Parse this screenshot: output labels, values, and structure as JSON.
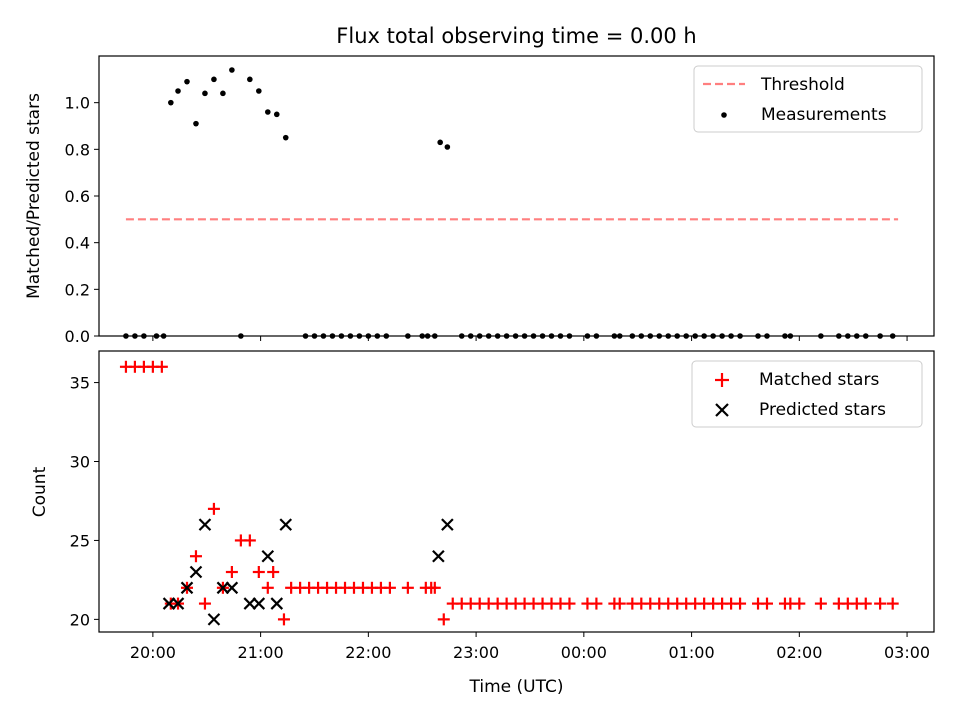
{
  "chart_data": {
    "title": "Flux total observing time = 0.00 h",
    "xlabel": "Time (UTC)",
    "x_unit": "UTC time (HH:MM); values after 24:00 are next day",
    "x_ticks": [
      "20:00",
      "21:00",
      "22:00",
      "23:00",
      "00:00",
      "01:00",
      "02:00",
      "03:00"
    ],
    "x_range": [
      "19:30",
      "03:15"
    ],
    "panels": [
      {
        "type": "scatter",
        "ylabel": "Matched/Predicted stars",
        "ylim": [
          0,
          1.2
        ],
        "yticks": [
          "0.0",
          "0.2",
          "0.4",
          "0.6",
          "0.8",
          "1.0"
        ],
        "legend_position": "top-right",
        "series": [
          {
            "name": "Threshold",
            "kind": "dashed-line",
            "color": "#ff7f7f",
            "x": [
              "19:45",
              "02:55"
            ],
            "y": [
              0.5,
              0.5
            ]
          },
          {
            "name": "Measurements",
            "kind": "points",
            "color": "#000000",
            "points": [
              [
                "19:45",
                0.0
              ],
              [
                "19:50",
                0.0
              ],
              [
                "19:55",
                0.0
              ],
              [
                "20:02",
                0.0
              ],
              [
                "20:06",
                0.0
              ],
              [
                "20:10",
                1.0
              ],
              [
                "20:14",
                1.05
              ],
              [
                "20:19",
                1.09
              ],
              [
                "20:24",
                0.91
              ],
              [
                "20:29",
                1.04
              ],
              [
                "20:34",
                1.1
              ],
              [
                "20:39",
                1.04
              ],
              [
                "20:44",
                1.14
              ],
              [
                "20:49",
                0.0
              ],
              [
                "20:54",
                1.1
              ],
              [
                "20:59",
                1.05
              ],
              [
                "21:04",
                0.96
              ],
              [
                "21:09",
                0.95
              ],
              [
                "21:14",
                0.85
              ],
              [
                "21:25",
                0.0
              ],
              [
                "21:30",
                0.0
              ],
              [
                "21:35",
                0.0
              ],
              [
                "21:40",
                0.0
              ],
              [
                "21:45",
                0.0
              ],
              [
                "21:50",
                0.0
              ],
              [
                "21:55",
                0.0
              ],
              [
                "22:00",
                0.0
              ],
              [
                "22:05",
                0.0
              ],
              [
                "22:10",
                0.0
              ],
              [
                "22:22",
                0.0
              ],
              [
                "22:30",
                0.0
              ],
              [
                "22:33",
                0.0
              ],
              [
                "22:37",
                0.0
              ],
              [
                "22:40",
                0.83
              ],
              [
                "22:44",
                0.81
              ],
              [
                "22:52",
                0.0
              ],
              [
                "22:57",
                0.0
              ],
              [
                "23:02",
                0.0
              ],
              [
                "23:07",
                0.0
              ],
              [
                "23:12",
                0.0
              ],
              [
                "23:17",
                0.0
              ],
              [
                "23:22",
                0.0
              ],
              [
                "23:27",
                0.0
              ],
              [
                "23:32",
                0.0
              ],
              [
                "23:37",
                0.0
              ],
              [
                "23:42",
                0.0
              ],
              [
                "23:47",
                0.0
              ],
              [
                "23:52",
                0.0
              ],
              [
                "00:02",
                0.0
              ],
              [
                "00:07",
                0.0
              ],
              [
                "00:17",
                0.0
              ],
              [
                "00:20",
                0.0
              ],
              [
                "00:27",
                0.0
              ],
              [
                "00:32",
                0.0
              ],
              [
                "00:37",
                0.0
              ],
              [
                "00:42",
                0.0
              ],
              [
                "00:47",
                0.0
              ],
              [
                "00:52",
                0.0
              ],
              [
                "00:57",
                0.0
              ],
              [
                "01:02",
                0.0
              ],
              [
                "01:07",
                0.0
              ],
              [
                "01:12",
                0.0
              ],
              [
                "01:17",
                0.0
              ],
              [
                "01:22",
                0.0
              ],
              [
                "01:27",
                0.0
              ],
              [
                "01:37",
                0.0
              ],
              [
                "01:42",
                0.0
              ],
              [
                "01:52",
                0.0
              ],
              [
                "01:55",
                0.0
              ],
              [
                "02:12",
                0.0
              ],
              [
                "02:22",
                0.0
              ],
              [
                "02:27",
                0.0
              ],
              [
                "02:32",
                0.0
              ],
              [
                "02:37",
                0.0
              ],
              [
                "02:45",
                0.0
              ],
              [
                "02:52",
                0.0
              ]
            ]
          }
        ]
      },
      {
        "type": "scatter",
        "ylabel": "Count",
        "ylim": [
          19.2,
          37.0
        ],
        "yticks": [
          "20",
          "25",
          "30",
          "35"
        ],
        "legend_position": "top-right",
        "series": [
          {
            "name": "Matched stars",
            "marker": "plus",
            "color": "#ff0000",
            "points": [
              [
                "19:45",
                36
              ],
              [
                "19:50",
                36
              ],
              [
                "19:55",
                36
              ],
              [
                "20:00",
                36
              ],
              [
                "20:05",
                36
              ],
              [
                "20:10",
                21
              ],
              [
                "20:14",
                21
              ],
              [
                "20:19",
                22
              ],
              [
                "20:24",
                24
              ],
              [
                "20:29",
                21
              ],
              [
                "20:34",
                27
              ],
              [
                "20:39",
                22
              ],
              [
                "20:44",
                23
              ],
              [
                "20:49",
                25
              ],
              [
                "20:54",
                25
              ],
              [
                "20:59",
                23
              ],
              [
                "21:04",
                22
              ],
              [
                "21:07",
                23
              ],
              [
                "21:13",
                20
              ],
              [
                "21:17",
                22
              ],
              [
                "21:22",
                22
              ],
              [
                "21:27",
                22
              ],
              [
                "21:32",
                22
              ],
              [
                "21:37",
                22
              ],
              [
                "21:42",
                22
              ],
              [
                "21:47",
                22
              ],
              [
                "21:52",
                22
              ],
              [
                "21:57",
                22
              ],
              [
                "22:02",
                22
              ],
              [
                "22:07",
                22
              ],
              [
                "22:12",
                22
              ],
              [
                "22:22",
                22
              ],
              [
                "22:32",
                22
              ],
              [
                "22:35",
                22
              ],
              [
                "22:37",
                22
              ],
              [
                "22:42",
                20
              ],
              [
                "22:47",
                21
              ],
              [
                "22:52",
                21
              ],
              [
                "22:57",
                21
              ],
              [
                "23:02",
                21
              ],
              [
                "23:07",
                21
              ],
              [
                "23:12",
                21
              ],
              [
                "23:17",
                21
              ],
              [
                "23:22",
                21
              ],
              [
                "23:27",
                21
              ],
              [
                "23:32",
                21
              ],
              [
                "23:37",
                21
              ],
              [
                "23:42",
                21
              ],
              [
                "23:47",
                21
              ],
              [
                "23:52",
                21
              ],
              [
                "00:02",
                21
              ],
              [
                "00:07",
                21
              ],
              [
                "00:17",
                21
              ],
              [
                "00:20",
                21
              ],
              [
                "00:27",
                21
              ],
              [
                "00:32",
                21
              ],
              [
                "00:37",
                21
              ],
              [
                "00:42",
                21
              ],
              [
                "00:47",
                21
              ],
              [
                "00:52",
                21
              ],
              [
                "00:57",
                21
              ],
              [
                "01:02",
                21
              ],
              [
                "01:07",
                21
              ],
              [
                "01:12",
                21
              ],
              [
                "01:17",
                21
              ],
              [
                "01:22",
                21
              ],
              [
                "01:27",
                21
              ],
              [
                "01:37",
                21
              ],
              [
                "01:42",
                21
              ],
              [
                "01:52",
                21
              ],
              [
                "01:55",
                21
              ],
              [
                "02:00",
                21
              ],
              [
                "02:12",
                21
              ],
              [
                "02:22",
                21
              ],
              [
                "02:27",
                21
              ],
              [
                "02:32",
                21
              ],
              [
                "02:37",
                21
              ],
              [
                "02:45",
                21
              ],
              [
                "02:52",
                21
              ]
            ]
          },
          {
            "name": "Predicted stars",
            "marker": "x",
            "color": "#000000",
            "points": [
              [
                "20:09",
                21
              ],
              [
                "20:14",
                21
              ],
              [
                "20:19",
                22
              ],
              [
                "20:24",
                23
              ],
              [
                "20:29",
                26
              ],
              [
                "20:34",
                20
              ],
              [
                "20:39",
                22
              ],
              [
                "20:44",
                22
              ],
              [
                "20:54",
                21
              ],
              [
                "20:59",
                21
              ],
              [
                "21:04",
                24
              ],
              [
                "21:09",
                21
              ],
              [
                "21:14",
                26
              ],
              [
                "22:39",
                24
              ],
              [
                "22:44",
                26
              ]
            ]
          }
        ]
      }
    ]
  }
}
